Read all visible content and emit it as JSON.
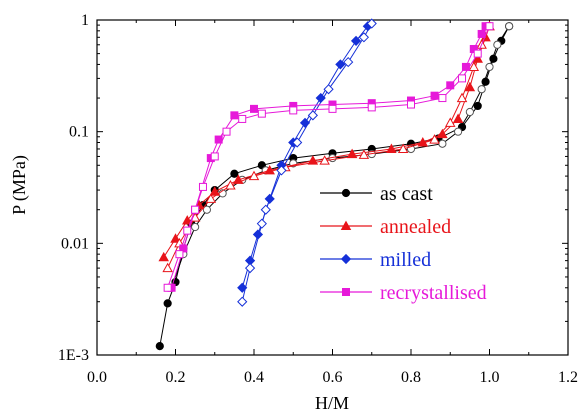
{
  "chart_data": {
    "type": "line",
    "xlabel": "H/M",
    "ylabel": "P (MPa)",
    "xscale": "linear",
    "yscale": "log",
    "xlim": [
      0.0,
      1.2
    ],
    "ylim": [
      0.001,
      1
    ],
    "x_ticks": [
      0.0,
      0.2,
      0.4,
      0.6,
      0.8,
      1.0,
      1.2
    ],
    "x_tick_labels": [
      "0.0",
      "0.2",
      "0.4",
      "0.6",
      "0.8",
      "1.0",
      "1.2"
    ],
    "y_ticks": [
      0.001,
      0.01,
      0.1,
      1
    ],
    "y_tick_labels": [
      "1E-3",
      "0.01",
      "0.1",
      "1"
    ],
    "grid": false,
    "legend_position": "center-right",
    "series": [
      {
        "name": "as cast",
        "color": "#000000",
        "marker": "circle",
        "absorption": [
          [
            0.16,
            0.0012
          ],
          [
            0.18,
            0.0029
          ],
          [
            0.2,
            0.0045
          ],
          [
            0.22,
            0.009
          ],
          [
            0.24,
            0.015
          ],
          [
            0.27,
            0.022
          ],
          [
            0.3,
            0.03
          ],
          [
            0.35,
            0.042
          ],
          [
            0.42,
            0.05
          ],
          [
            0.5,
            0.058
          ],
          [
            0.6,
            0.064
          ],
          [
            0.7,
            0.07
          ],
          [
            0.8,
            0.078
          ],
          [
            0.87,
            0.087
          ],
          [
            0.93,
            0.11
          ],
          [
            0.97,
            0.17
          ],
          [
            0.99,
            0.28
          ],
          [
            1.01,
            0.45
          ],
          [
            1.03,
            0.65
          ],
          [
            1.05,
            0.88
          ]
        ],
        "desorption": [
          [
            1.05,
            0.88
          ],
          [
            1.02,
            0.6
          ],
          [
            1.0,
            0.38
          ],
          [
            0.98,
            0.24
          ],
          [
            0.95,
            0.15
          ],
          [
            0.92,
            0.1
          ],
          [
            0.88,
            0.078
          ],
          [
            0.8,
            0.07
          ],
          [
            0.7,
            0.063
          ],
          [
            0.6,
            0.058
          ],
          [
            0.5,
            0.052
          ],
          [
            0.43,
            0.045
          ],
          [
            0.37,
            0.037
          ],
          [
            0.32,
            0.028
          ],
          [
            0.28,
            0.02
          ],
          [
            0.25,
            0.014
          ],
          [
            0.22,
            0.008
          ],
          [
            0.19,
            0.004
          ]
        ]
      },
      {
        "name": "annealed",
        "color": "#e8141a",
        "marker": "triangle",
        "absorption": [
          [
            0.17,
            0.0075
          ],
          [
            0.2,
            0.011
          ],
          [
            0.23,
            0.016
          ],
          [
            0.26,
            0.022
          ],
          [
            0.3,
            0.029
          ],
          [
            0.36,
            0.037
          ],
          [
            0.44,
            0.045
          ],
          [
            0.55,
            0.055
          ],
          [
            0.65,
            0.063
          ],
          [
            0.75,
            0.07
          ],
          [
            0.83,
            0.08
          ],
          [
            0.88,
            0.095
          ],
          [
            0.92,
            0.13
          ],
          [
            0.95,
            0.25
          ],
          [
            0.97,
            0.45
          ],
          [
            0.99,
            0.7
          ],
          [
            1.0,
            0.88
          ]
        ],
        "desorption": [
          [
            1.0,
            0.88
          ],
          [
            0.98,
            0.6
          ],
          [
            0.96,
            0.38
          ],
          [
            0.93,
            0.2
          ],
          [
            0.9,
            0.12
          ],
          [
            0.86,
            0.085
          ],
          [
            0.78,
            0.07
          ],
          [
            0.68,
            0.062
          ],
          [
            0.58,
            0.055
          ],
          [
            0.48,
            0.048
          ],
          [
            0.4,
            0.04
          ],
          [
            0.34,
            0.033
          ],
          [
            0.29,
            0.025
          ],
          [
            0.25,
            0.017
          ],
          [
            0.21,
            0.01
          ],
          [
            0.18,
            0.006
          ]
        ]
      },
      {
        "name": "milled",
        "color": "#1530d8",
        "marker": "diamond",
        "absorption": [
          [
            0.37,
            0.004
          ],
          [
            0.39,
            0.007
          ],
          [
            0.41,
            0.012
          ],
          [
            0.44,
            0.025
          ],
          [
            0.47,
            0.05
          ],
          [
            0.5,
            0.08
          ],
          [
            0.53,
            0.12
          ],
          [
            0.57,
            0.2
          ],
          [
            0.62,
            0.4
          ],
          [
            0.66,
            0.65
          ],
          [
            0.69,
            0.88
          ]
        ],
        "desorption": [
          [
            0.7,
            0.93
          ],
          [
            0.68,
            0.7
          ],
          [
            0.64,
            0.42
          ],
          [
            0.59,
            0.24
          ],
          [
            0.55,
            0.14
          ],
          [
            0.51,
            0.08
          ],
          [
            0.47,
            0.045
          ],
          [
            0.43,
            0.02
          ],
          [
            0.42,
            0.015
          ],
          [
            0.39,
            0.006
          ],
          [
            0.37,
            0.003
          ]
        ]
      },
      {
        "name": "recrystallised",
        "color": "#e619d9",
        "marker": "square",
        "absorption": [
          [
            0.19,
            0.004
          ],
          [
            0.22,
            0.009
          ],
          [
            0.25,
            0.02
          ],
          [
            0.29,
            0.058
          ],
          [
            0.31,
            0.085
          ],
          [
            0.35,
            0.14
          ],
          [
            0.4,
            0.16
          ],
          [
            0.5,
            0.17
          ],
          [
            0.6,
            0.175
          ],
          [
            0.7,
            0.18
          ],
          [
            0.8,
            0.19
          ],
          [
            0.86,
            0.21
          ],
          [
            0.9,
            0.26
          ],
          [
            0.94,
            0.38
          ],
          [
            0.96,
            0.55
          ],
          [
            0.98,
            0.75
          ],
          [
            0.99,
            0.88
          ]
        ],
        "desorption": [
          [
            1.0,
            0.88
          ],
          [
            0.97,
            0.5
          ],
          [
            0.93,
            0.3
          ],
          [
            0.88,
            0.2
          ],
          [
            0.8,
            0.175
          ],
          [
            0.7,
            0.165
          ],
          [
            0.6,
            0.16
          ],
          [
            0.5,
            0.155
          ],
          [
            0.42,
            0.145
          ],
          [
            0.37,
            0.13
          ],
          [
            0.33,
            0.1
          ],
          [
            0.3,
            0.06
          ],
          [
            0.27,
            0.032
          ],
          [
            0.25,
            0.02
          ],
          [
            0.23,
            0.013
          ],
          [
            0.21,
            0.008
          ],
          [
            0.18,
            0.004
          ]
        ]
      }
    ]
  }
}
